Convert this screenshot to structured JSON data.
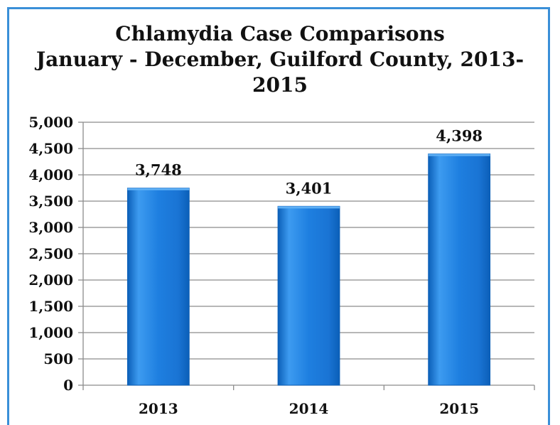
{
  "chart_data": {
    "type": "bar",
    "title_lines": [
      "Chlamydia Case Comparisons",
      "January - December, Guilford County, 2013-",
      "2015"
    ],
    "categories": [
      "2013",
      "2014",
      "2015"
    ],
    "values": [
      3748,
      3401,
      4398
    ],
    "value_labels": [
      "3,748",
      "3,401",
      "4,398"
    ],
    "xlabel": "",
    "ylabel": "",
    "ylim": [
      0,
      5000
    ],
    "yticks": [
      0,
      500,
      1000,
      1500,
      2000,
      2500,
      3000,
      3500,
      4000,
      4500,
      5000
    ],
    "ytick_labels": [
      "0",
      "500",
      "1,000",
      "1,500",
      "2,000",
      "2,500",
      "3,000",
      "3,500",
      "4,000",
      "4,500",
      "5,000"
    ],
    "grid": true,
    "legend": "none",
    "colors": {
      "bar": "#1e7fe0",
      "bar_light": "#5fb0f5",
      "bar_dark": "#0b5fb8",
      "grid": "#8c8c8c",
      "frame": "#3a8fd8"
    }
  }
}
